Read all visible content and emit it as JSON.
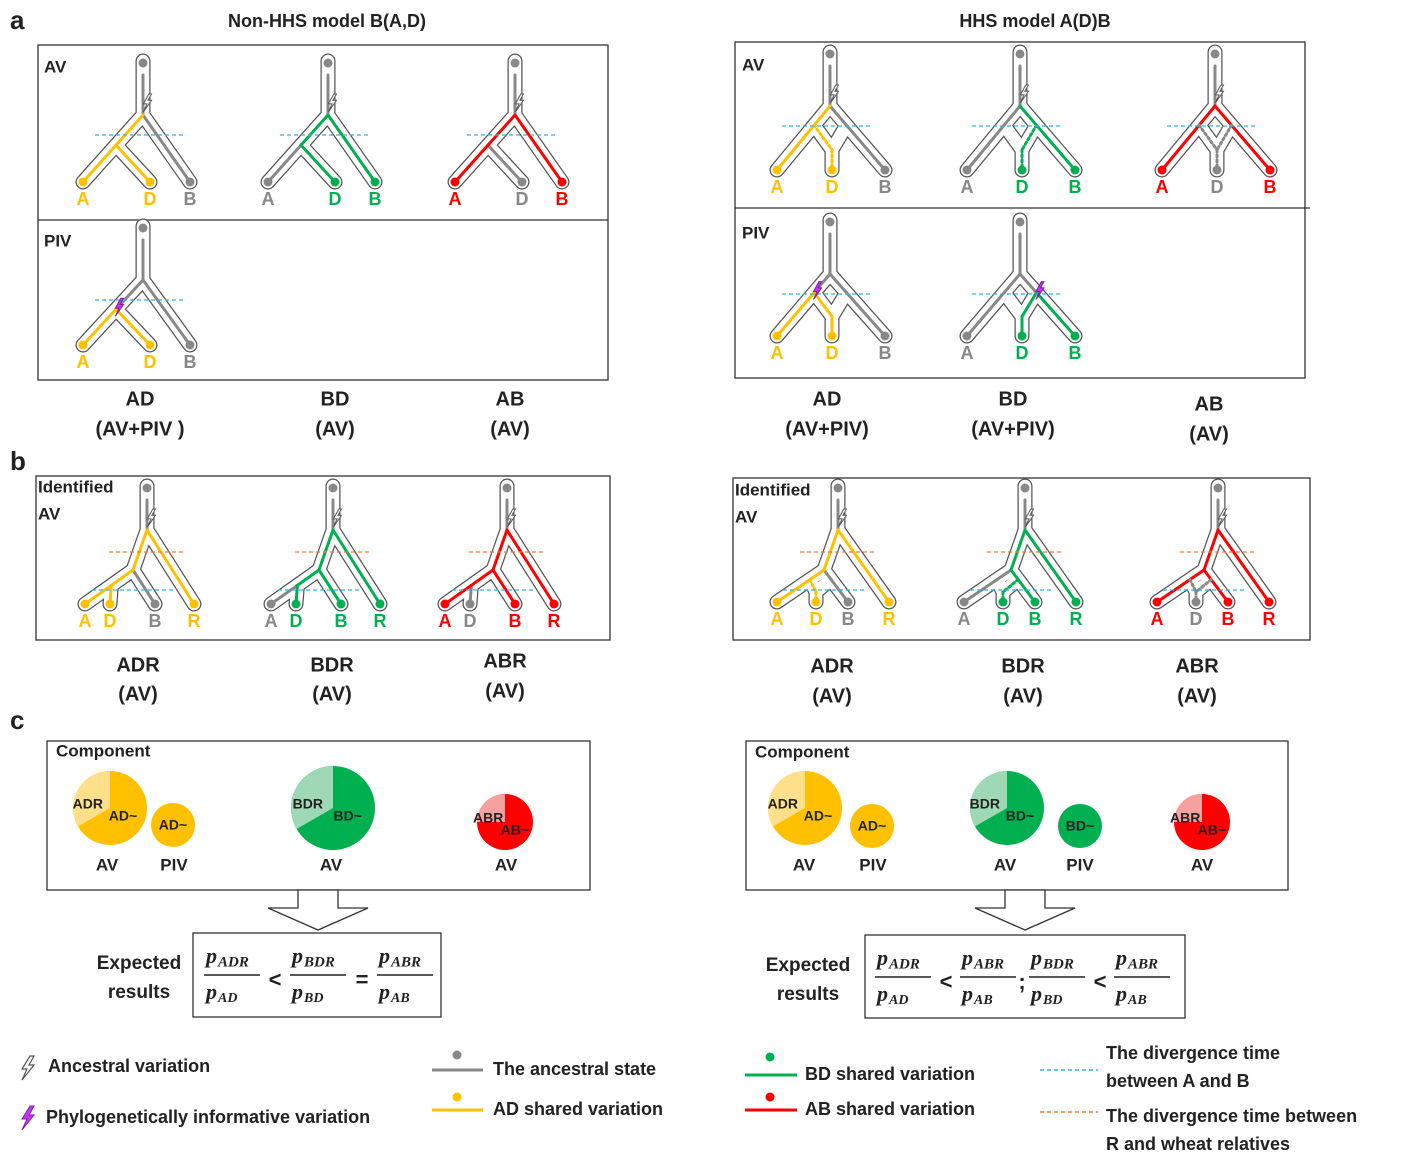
{
  "panel_labels": [
    "a",
    "b",
    "c"
  ],
  "models": [
    {
      "title": "Non-HHS model B(A,D)",
      "a": {
        "av_label": "AV",
        "piv_label": "PIV",
        "av_trees": [
          [
            "A",
            "D",
            "B"
          ],
          [
            "A",
            "D",
            "B"
          ],
          [
            "A",
            "D",
            "B"
          ]
        ],
        "piv_trees": [
          [
            "A",
            "D",
            "B"
          ]
        ],
        "captions": [
          [
            "AD",
            "(AV+PIV )"
          ],
          [
            "BD",
            "(AV)"
          ],
          [
            "AB",
            "(AV)"
          ]
        ]
      },
      "b": {
        "label": [
          "Identified",
          "AV"
        ],
        "trees": [
          [
            "A",
            "D",
            "B",
            "R"
          ],
          [
            "A",
            "D",
            "B",
            "R"
          ],
          [
            "A",
            "D",
            "B",
            "R"
          ]
        ],
        "captions": [
          [
            "ADR",
            "(AV)"
          ],
          [
            "BDR",
            "(AV)"
          ],
          [
            "ABR",
            "(AV)"
          ]
        ]
      },
      "c": {
        "label": "Component",
        "pies": [
          {
            "labels": [
              "ADR",
              "AD~"
            ],
            "caption": "AV"
          },
          {
            "labels": [
              "AD~"
            ],
            "caption": "PIV"
          },
          {
            "labels": [
              "BDR",
              "BD~"
            ],
            "caption": "AV"
          },
          {
            "labels": [
              "ABR",
              "AB~"
            ],
            "caption": "AV"
          }
        ],
        "expected": [
          "Expected",
          "results"
        ],
        "formula": {
          "var": "p",
          "terms": [
            {
              "num": "ADR",
              "den": "AD"
            },
            {
              "num": "BDR",
              "den": "BD"
            },
            {
              "num": "ABR",
              "den": "AB"
            }
          ],
          "ops": [
            "<",
            "="
          ]
        }
      }
    },
    {
      "title": "HHS model A(D)B",
      "a": {
        "av_label": "AV",
        "piv_label": "PIV",
        "av_trees": [
          [
            "A",
            "D",
            "B"
          ],
          [
            "A",
            "D",
            "B"
          ],
          [
            "A",
            "D",
            "B"
          ]
        ],
        "piv_trees": [
          [
            "A",
            "D",
            "B"
          ],
          [
            "A",
            "D",
            "B"
          ]
        ],
        "captions": [
          [
            "AD",
            "(AV+PIV)"
          ],
          [
            "BD",
            "(AV+PIV)"
          ],
          [
            "AB",
            "(AV)"
          ]
        ]
      },
      "b": {
        "label": [
          "Identified",
          "AV"
        ],
        "trees": [
          [
            "A",
            "D",
            "B",
            "R"
          ],
          [
            "A",
            "D",
            "B",
            "R"
          ],
          [
            "A",
            "D",
            "B",
            "R"
          ]
        ],
        "captions": [
          [
            "ADR",
            "(AV)"
          ],
          [
            "BDR",
            "(AV)"
          ],
          [
            "ABR",
            "(AV)"
          ]
        ]
      },
      "c": {
        "label": "Component",
        "pies": [
          {
            "labels": [
              "ADR",
              "AD~"
            ],
            "caption": "AV"
          },
          {
            "labels": [
              "AD~"
            ],
            "caption": "PIV"
          },
          {
            "labels": [
              "BDR",
              "BD~"
            ],
            "caption": "AV"
          },
          {
            "labels": [
              "BD~"
            ],
            "caption": "PIV"
          },
          {
            "labels": [
              "ABR",
              "AB~"
            ],
            "caption": "AV"
          }
        ],
        "expected": [
          "Expected",
          "results"
        ],
        "formula": {
          "var": "p",
          "terms": [
            {
              "num": "ADR",
              "den": "AD"
            },
            {
              "num": "ABR",
              "den": "AB"
            },
            {
              "num": "BDR",
              "den": "BD"
            },
            {
              "num": "ABR",
              "den": "AB"
            }
          ],
          "ops": [
            "<",
            ";",
            "<"
          ]
        }
      }
    }
  ],
  "legend": {
    "ancestral_variation": "Ancestral variation",
    "piv": "Phylogenetically informative variation",
    "ancestral_state": "The ancestral state",
    "ad": "AD shared variation",
    "bd": "BD shared variation",
    "ab": "AB shared variation",
    "div_ab": [
      "The divergence time",
      "between A and B"
    ],
    "div_r": [
      "The divergence time between",
      "R and wheat relatives"
    ]
  }
}
